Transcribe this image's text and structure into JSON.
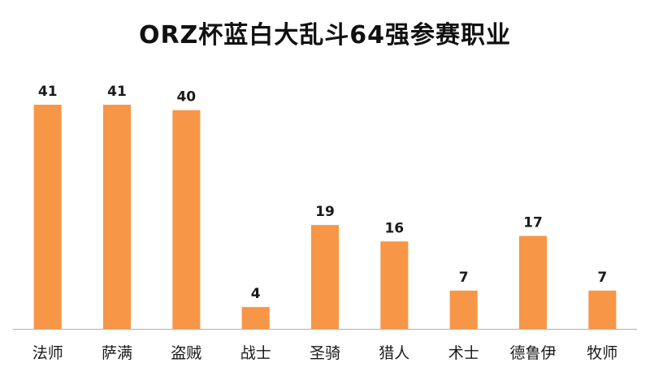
{
  "chart_data": {
    "type": "bar",
    "title": "ORZ杯蓝白大乱斗64强参赛职业",
    "categories": [
      "法师",
      "萨满",
      "盗贼",
      "战士",
      "圣骑",
      "猎人",
      "术士",
      "德鲁伊",
      "牧师"
    ],
    "values": [
      41,
      41,
      40,
      4,
      19,
      16,
      7,
      17,
      7
    ],
    "xlabel": "",
    "ylabel": "",
    "ylim": [
      0,
      41
    ],
    "grid": false,
    "legend": "none",
    "bar_color": "#F79646",
    "axis_color": "#B0B0B0",
    "data_labels": true
  }
}
